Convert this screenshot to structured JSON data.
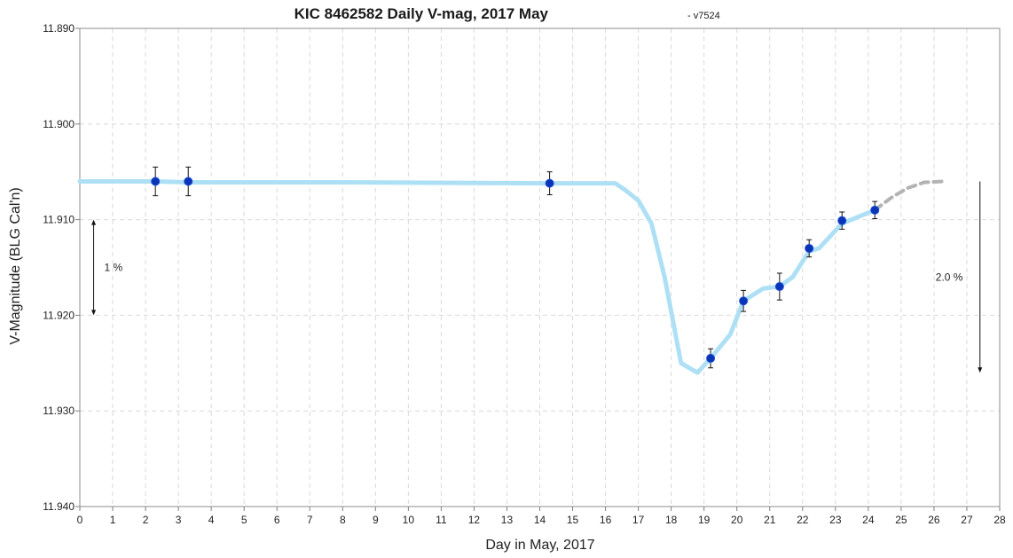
{
  "chart_data": {
    "type": "line",
    "title": "KIC 8462582 Daily V-mag, 2017 May",
    "subtitle": "- v7524",
    "xlabel": "Day in May, 2017",
    "ylabel": "V-Magnitude (BLG Cal'n)",
    "xlim": [
      0,
      28
    ],
    "ylim": [
      11.89,
      11.94
    ],
    "y_inverted": true,
    "x_ticks": [
      "0",
      "1",
      "2",
      "3",
      "4",
      "5",
      "6",
      "7",
      "8",
      "9",
      "10",
      "11",
      "12",
      "13",
      "14",
      "15",
      "16",
      "17",
      "18",
      "19",
      "20",
      "21",
      "22",
      "23",
      "24",
      "25",
      "26",
      "27",
      "28"
    ],
    "y_ticks": [
      "11.890",
      "11.900",
      "11.910",
      "11.920",
      "11.930",
      "11.940"
    ],
    "grid": true,
    "legend": "none",
    "colors": {
      "trend": "#aee0f5",
      "projection": "#b3b3b3",
      "points": "#0a33b5",
      "grid": "#d9d9d9"
    },
    "series": [
      {
        "kind": "trend",
        "x": [
          0.0,
          2.3,
          3.3,
          8.0,
          14.3,
          16.3,
          16.6,
          17.0,
          17.4,
          17.8,
          18.3,
          18.8,
          19.2,
          19.8,
          20.2,
          20.8,
          21.3,
          21.7,
          22.2,
          22.5,
          23.2,
          24.2
        ],
        "y": [
          11.906,
          11.906,
          11.9061,
          11.9061,
          11.9062,
          11.9062,
          11.9069,
          11.908,
          11.9104,
          11.916,
          11.925,
          11.926,
          11.9245,
          11.922,
          11.9185,
          11.9172,
          11.917,
          11.916,
          11.9133,
          11.913,
          11.9104,
          11.909
        ]
      },
      {
        "kind": "projection",
        "x": [
          24.2,
          24.7,
          25.2,
          25.7,
          26.3
        ],
        "y": [
          11.909,
          11.9077,
          11.9067,
          11.9061,
          11.906
        ]
      },
      {
        "kind": "points",
        "x": [
          2.3,
          3.3,
          14.3,
          19.2,
          20.2,
          21.3,
          22.2,
          23.2,
          24.2
        ],
        "y": [
          11.906,
          11.906,
          11.9062,
          11.9245,
          11.9185,
          11.917,
          11.913,
          11.9101,
          11.909
        ],
        "err": [
          0.0015,
          0.0015,
          0.0012,
          0.001,
          0.0011,
          0.0014,
          0.0009,
          0.0009,
          0.0009
        ]
      }
    ],
    "annotations": [
      {
        "text": "1 %",
        "arrow_x": 0.42,
        "arrow_y": [
          11.91,
          11.92
        ]
      },
      {
        "text": "2.0 %",
        "arrow_x": 27.4,
        "arrow_y": [
          11.906,
          11.926
        ]
      }
    ]
  }
}
